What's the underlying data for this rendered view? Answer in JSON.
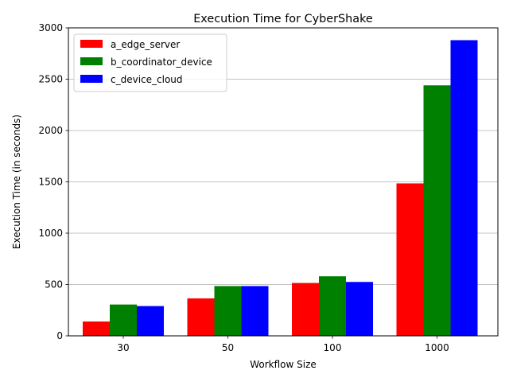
{
  "chart_data": {
    "type": "bar",
    "title": "Execution Time for CyberShake",
    "xlabel": "Workflow Size",
    "ylabel": "Execution Time (in seconds)",
    "categories": [
      "30",
      "50",
      "100",
      "1000"
    ],
    "ylim": [
      0,
      3000
    ],
    "yticks": [
      0,
      500,
      1000,
      1500,
      2000,
      2500,
      3000
    ],
    "grid": "y",
    "legend_position": "top-left",
    "series": [
      {
        "name": "a_edge_server",
        "color": "#ff0000",
        "values": [
          140,
          365,
          515,
          1485
        ]
      },
      {
        "name": "b_coordinator_device",
        "color": "#008000",
        "values": [
          305,
          485,
          580,
          2440
        ]
      },
      {
        "name": "c_device_cloud",
        "color": "#0000ff",
        "values": [
          290,
          485,
          525,
          2880
        ]
      }
    ]
  }
}
